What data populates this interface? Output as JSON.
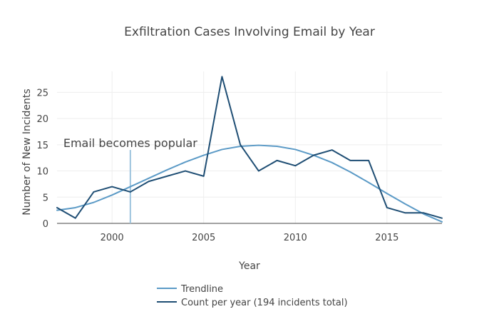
{
  "chart_data": {
    "type": "line",
    "title": "Exfiltration Cases Involving Email by Year",
    "xlabel": "Year",
    "ylabel": "Number of New Incidents",
    "xlim": [
      1997,
      2018
    ],
    "ylim": [
      0,
      29
    ],
    "x_ticks": [
      2000,
      2005,
      2010,
      2015
    ],
    "y_ticks": [
      0,
      5,
      10,
      15,
      20,
      25
    ],
    "grid": true,
    "legend_position": "bottom-center",
    "series": [
      {
        "name": "Trendline",
        "color": "#5b9ac6",
        "x": [
          1997,
          1998,
          1999,
          2000,
          2001,
          2002,
          2003,
          2004,
          2005,
          2006,
          2007,
          2008,
          2009,
          2010,
          2011,
          2012,
          2013,
          2014,
          2015,
          2016,
          2017,
          2018
        ],
        "y": [
          2.5,
          3.0,
          4.0,
          5.4,
          7.0,
          8.6,
          10.2,
          11.7,
          13.0,
          14.1,
          14.7,
          14.9,
          14.7,
          14.1,
          13.0,
          11.6,
          9.8,
          7.8,
          5.7,
          3.7,
          1.8,
          0.3
        ]
      },
      {
        "name": "Count per year (194 incidents total)",
        "color": "#1f4e74",
        "x": [
          1997,
          1998,
          1999,
          2000,
          2001,
          2002,
          2003,
          2004,
          2005,
          2006,
          2007,
          2008,
          2009,
          2010,
          2011,
          2012,
          2013,
          2014,
          2015,
          2016,
          2017,
          2018
        ],
        "y": [
          3,
          1,
          6,
          7,
          6,
          8,
          9,
          10,
          9,
          28,
          15,
          10,
          12,
          11,
          13,
          14,
          12,
          12,
          3,
          2,
          2,
          1
        ]
      }
    ],
    "annotations": [
      {
        "text": "Email becomes popular",
        "x": 2001,
        "y_top": 14,
        "color": "#9cc3de"
      }
    ]
  }
}
